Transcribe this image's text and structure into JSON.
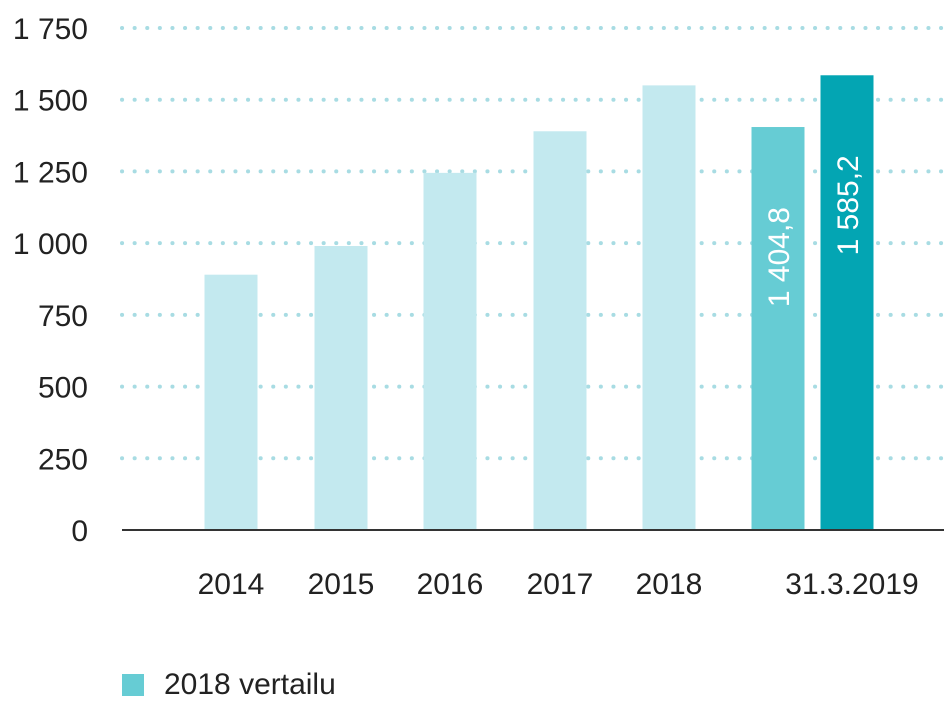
{
  "chart_data": {
    "type": "bar",
    "title": "",
    "xlabel": "",
    "ylabel": "",
    "ylim": [
      0,
      1750
    ],
    "yticks": [
      0,
      250,
      500,
      750,
      1000,
      1250,
      1500,
      1750
    ],
    "ytick_labels": [
      "0",
      "250",
      "500",
      "750",
      "1 000",
      "1 250",
      "1 500",
      "1 750"
    ],
    "grid": "horizontal-dotted",
    "categories": [
      "2014",
      "2015",
      "2016",
      "2017",
      "2018",
      "31.3.2019"
    ],
    "bars": [
      {
        "category": "2014",
        "value": 890,
        "color": "#c3e9ef"
      },
      {
        "category": "2015",
        "value": 990,
        "color": "#c3e9ef"
      },
      {
        "category": "2016",
        "value": 1245,
        "color": "#c3e9ef"
      },
      {
        "category": "2017",
        "value": 1390,
        "color": "#c3e9ef"
      },
      {
        "category": "2018",
        "value": 1550,
        "color": "#c3e9ef"
      },
      {
        "category": "31.3.2019",
        "value": 1404.8,
        "label": "1 404,8",
        "color": "#66ccd4"
      },
      {
        "category": "31.3.2019",
        "value": 1585.2,
        "label": "1 585,2",
        "color": "#03a5b3"
      }
    ],
    "legend": {
      "position": "bottom-left",
      "entries": [
        {
          "label": "2018 vertailu",
          "color": "#66ccd4"
        }
      ]
    },
    "colors": {
      "grid": "#a8dce3",
      "axis": "#333333"
    }
  }
}
